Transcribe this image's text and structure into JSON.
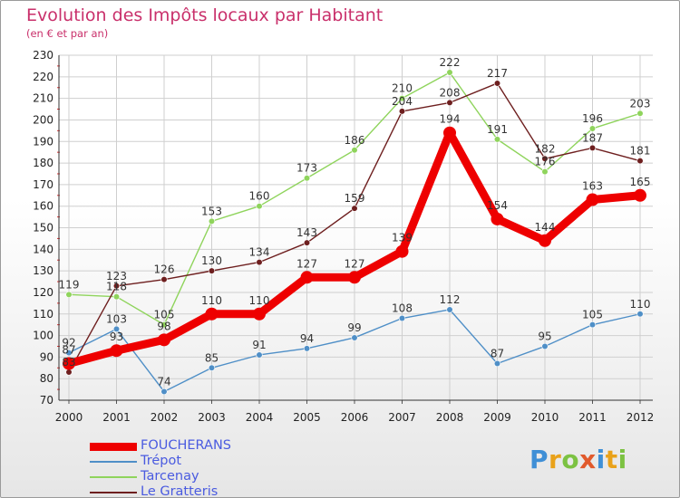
{
  "header": {
    "title": "Evolution des Impôts locaux par Habitant",
    "subtitle": "(en € et par an)"
  },
  "brand": {
    "letters": [
      {
        "ch": "P",
        "color": "#3f8fd6"
      },
      {
        "ch": "r",
        "color": "#e9a21a"
      },
      {
        "ch": "o",
        "color": "#7cc242"
      },
      {
        "ch": "x",
        "color": "#e15a2c"
      },
      {
        "ch": "i",
        "color": "#3f8fd6"
      },
      {
        "ch": "t",
        "color": "#e9a21a"
      },
      {
        "ch": "i",
        "color": "#7cc242"
      }
    ]
  },
  "chart_data": {
    "type": "line",
    "title": "Evolution des Impôts locaux par Habitant",
    "subtitle": "(en € et par an)",
    "xlabel": "",
    "ylabel": "",
    "x": [
      "2000",
      "2001",
      "2002",
      "2003",
      "2004",
      "2005",
      "2006",
      "2007",
      "2008",
      "2009",
      "2010",
      "2011",
      "2012"
    ],
    "ylim": [
      70,
      230
    ],
    "yticks": [
      70,
      80,
      90,
      100,
      110,
      120,
      130,
      140,
      150,
      160,
      170,
      180,
      190,
      200,
      210,
      220,
      230
    ],
    "grid": true,
    "legend_position": "bottom-left",
    "series": [
      {
        "name": "FOUCHERANS",
        "color": "#ee0000",
        "emphasis": true,
        "values": [
          87,
          93,
          98,
          110,
          110,
          127,
          127,
          139,
          194,
          154,
          144,
          163,
          165
        ]
      },
      {
        "name": "Trépot",
        "color": "#4f8fc7",
        "emphasis": false,
        "values": [
          92,
          103,
          74,
          85,
          91,
          94,
          99,
          108,
          112,
          87,
          95,
          105,
          110
        ]
      },
      {
        "name": "Tarcenay",
        "color": "#8fd45c",
        "emphasis": false,
        "values": [
          119,
          118,
          105,
          153,
          160,
          173,
          186,
          210,
          222,
          191,
          176,
          196,
          203
        ]
      },
      {
        "name": "Le Gratteris",
        "color": "#6e1f1f",
        "emphasis": false,
        "values": [
          83,
          123,
          126,
          130,
          134,
          143,
          159,
          204,
          208,
          217,
          182,
          187,
          181
        ]
      }
    ]
  }
}
